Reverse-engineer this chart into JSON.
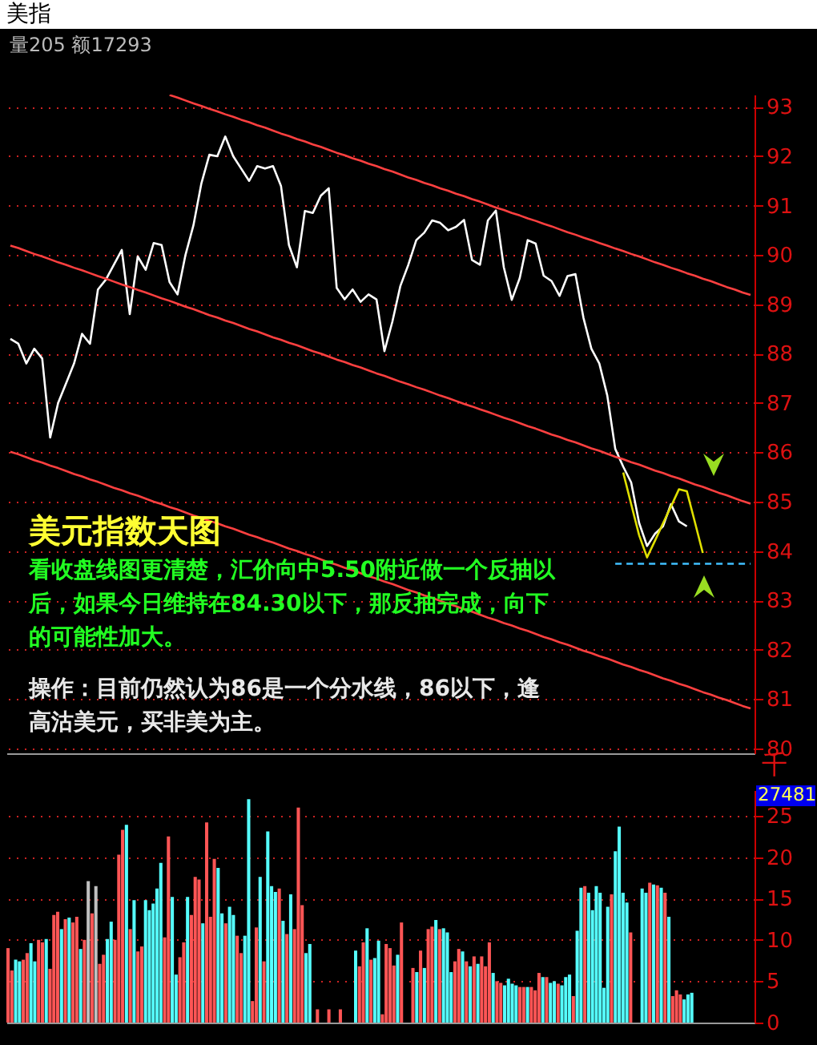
{
  "chart_data": [
    {
      "type": "line",
      "title": "美指",
      "subtitle": "量205 额17293",
      "ylim": [
        79.9,
        93.25
      ],
      "yticks": [
        80,
        81,
        82,
        83,
        84,
        85,
        86,
        87,
        88,
        89,
        90,
        91,
        92,
        93
      ],
      "grid": "y",
      "tick_labels": "y",
      "annotations": [
        "美元指数天图",
        "看收盘线图更清楚，汇价向中5.50附近做一个反抽以后，如果今日维持在84.30以下，那反抽完成，向下的可能性加大。",
        "操作：目前仍然认为86是一个分水线，86以下，逢高沽美元，买非美为主。"
      ],
      "categories": [
        null,
        null,
        null,
        null,
        null,
        null,
        null,
        null,
        null,
        null,
        null,
        null,
        null,
        null,
        null,
        null,
        null,
        null,
        null,
        null,
        null,
        null,
        null,
        null,
        null,
        null,
        null,
        null,
        null,
        null,
        null,
        null,
        null,
        null,
        null,
        null,
        null,
        null,
        null,
        null,
        null,
        null,
        null,
        null,
        null,
        null,
        null,
        null,
        null,
        null,
        null,
        null,
        null,
        null,
        null,
        null,
        null,
        null,
        null,
        null,
        null,
        null,
        null,
        null,
        null,
        null,
        null,
        null,
        null,
        null,
        null,
        null,
        null,
        null,
        null,
        null,
        null,
        null,
        null,
        null,
        null,
        null,
        null,
        null,
        null,
        null,
        null,
        null,
        null,
        null,
        null,
        null,
        null,
        null
      ],
      "series": [
        {
          "color": "#ffffff",
          "values": [
            88.3,
            88.2,
            87.8,
            88.1,
            87.9,
            86.3,
            87.0,
            87.4,
            87.8,
            88.4,
            88.2,
            89.3,
            89.5,
            89.8,
            90.1,
            88.8,
            89.97,
            89.7,
            90.24,
            90.2,
            89.45,
            89.2,
            90.0,
            90.6,
            91.45,
            92.03,
            92.0,
            92.4,
            92.0,
            91.75,
            91.5,
            91.8,
            91.75,
            91.8,
            91.4,
            90.2,
            89.75,
            90.89,
            90.85,
            91.2,
            91.35,
            89.33,
            89.1,
            89.3,
            89.05,
            89.2,
            89.1,
            88.05,
            88.65,
            89.37,
            89.8,
            90.3,
            90.45,
            90.7,
            90.65,
            90.5,
            90.57,
            90.71,
            89.9,
            89.8,
            90.7,
            90.9,
            89.75,
            89.09,
            89.53,
            90.3,
            90.23,
            89.58,
            89.47,
            89.17,
            89.57,
            89.61,
            88.73,
            88.1,
            87.8,
            87.15,
            86.07,
            85.71,
            85.39,
            84.57,
            84.1,
            84.35,
            84.5,
            84.95,
            84.6,
            84.5,
            null,
            null,
            null,
            null,
            null,
            null,
            null,
            null
          ]
        },
        {
          "color": "#ff4040",
          "values": [
            null,
            null,
            null,
            null,
            null,
            null,
            null,
            null,
            null,
            null,
            null,
            null,
            null,
            null,
            null,
            null,
            null,
            null,
            null,
            null,
            93.24,
            93.19,
            93.13,
            93.07,
            93.02,
            92.96,
            92.91,
            92.85,
            92.8,
            92.74,
            92.69,
            92.63,
            92.58,
            92.52,
            92.46,
            92.41,
            92.35,
            92.3,
            92.24,
            92.19,
            92.13,
            92.07,
            92.02,
            91.96,
            91.91,
            91.85,
            91.8,
            91.74,
            91.69,
            91.63,
            91.57,
            91.52,
            91.46,
            91.41,
            91.35,
            91.3,
            91.24,
            91.19,
            91.13,
            91.08,
            91.02,
            90.96,
            90.91,
            90.85,
            90.8,
            90.74,
            90.69,
            90.63,
            90.58,
            90.52,
            90.46,
            90.41,
            90.35,
            90.3,
            90.24,
            90.19,
            90.13,
            90.08,
            90.02,
            89.97,
            89.91,
            89.85,
            89.8,
            89.74,
            89.69,
            89.63,
            89.58,
            89.52,
            89.47,
            89.41,
            89.35,
            89.3,
            89.24,
            89.19
          ]
        },
        {
          "color": "#ff4040",
          "values": [
            90.19,
            90.14,
            90.08,
            90.02,
            89.97,
            89.91,
            89.85,
            89.8,
            89.74,
            89.69,
            89.63,
            89.57,
            89.52,
            89.46,
            89.4,
            89.35,
            89.29,
            89.24,
            89.18,
            89.12,
            89.07,
            89.01,
            88.95,
            88.9,
            88.84,
            88.78,
            88.73,
            88.67,
            88.62,
            88.56,
            88.5,
            88.45,
            88.39,
            88.33,
            88.28,
            88.22,
            88.17,
            88.11,
            88.05,
            88.0,
            87.94,
            87.88,
            87.83,
            87.77,
            87.72,
            87.66,
            87.6,
            87.55,
            87.49,
            87.43,
            87.38,
            87.32,
            87.27,
            87.21,
            87.15,
            87.1,
            87.04,
            86.98,
            86.93,
            86.87,
            86.82,
            86.76,
            86.7,
            86.65,
            86.59,
            86.53,
            86.48,
            86.42,
            86.36,
            86.31,
            86.25,
            86.2,
            86.14,
            86.08,
            86.03,
            85.97,
            85.91,
            85.86,
            85.8,
            85.75,
            85.69,
            85.63,
            85.58,
            85.52,
            85.47,
            85.41,
            85.35,
            85.3,
            85.24,
            85.18,
            85.13,
            85.07,
            85.01,
            84.96
          ]
        },
        {
          "color": "#ff4040",
          "values": [
            86.01,
            85.96,
            85.9,
            85.84,
            85.79,
            85.73,
            85.68,
            85.62,
            85.56,
            85.51,
            85.45,
            85.4,
            85.34,
            85.28,
            85.23,
            85.17,
            85.12,
            85.06,
            85.0,
            84.95,
            84.89,
            84.84,
            84.78,
            84.72,
            84.67,
            84.61,
            84.56,
            84.5,
            84.45,
            84.39,
            84.33,
            84.28,
            84.22,
            84.17,
            84.11,
            84.05,
            84.0,
            83.94,
            83.89,
            83.83,
            83.77,
            83.72,
            83.66,
            83.61,
            83.55,
            83.49,
            83.44,
            83.38,
            83.33,
            83.27,
            83.21,
            83.16,
            83.1,
            83.05,
            82.99,
            82.93,
            82.88,
            82.82,
            82.77,
            82.71,
            82.65,
            82.6,
            82.54,
            82.49,
            82.43,
            82.38,
            82.32,
            82.26,
            82.21,
            82.15,
            82.1,
            82.04,
            81.98,
            81.93,
            81.87,
            81.82,
            81.76,
            81.7,
            81.65,
            81.59,
            81.54,
            81.48,
            81.42,
            81.37,
            81.31,
            81.26,
            81.2,
            81.14,
            81.09,
            81.03,
            80.98,
            80.92,
            80.86,
            80.81
          ]
        },
        {
          "color": "#e0e000",
          "values": [
            null,
            null,
            null,
            null,
            null,
            null,
            null,
            null,
            null,
            null,
            null,
            null,
            null,
            null,
            null,
            null,
            null,
            null,
            null,
            null,
            null,
            null,
            null,
            null,
            null,
            null,
            null,
            null,
            null,
            null,
            null,
            null,
            null,
            null,
            null,
            null,
            null,
            null,
            null,
            null,
            null,
            null,
            null,
            null,
            null,
            null,
            null,
            null,
            null,
            null,
            null,
            null,
            null,
            null,
            null,
            null,
            null,
            null,
            null,
            null,
            null,
            null,
            null,
            null,
            null,
            null,
            null,
            null,
            null,
            null,
            null,
            null,
            null,
            null,
            null,
            null,
            null,
            85.59,
            84.95,
            84.32,
            83.87,
            84.21,
            84.56,
            84.9,
            85.25,
            85.21,
            84.59,
            83.96,
            null,
            null,
            null,
            null,
            null,
            null
          ]
        },
        {
          "color": "#40c0ff",
          "line_style": "dashed",
          "values": [
            null,
            null,
            null,
            null,
            null,
            null,
            null,
            null,
            null,
            null,
            null,
            null,
            null,
            null,
            null,
            null,
            null,
            null,
            null,
            null,
            null,
            null,
            null,
            null,
            null,
            null,
            null,
            null,
            null,
            null,
            null,
            null,
            null,
            null,
            null,
            null,
            null,
            null,
            null,
            null,
            null,
            null,
            null,
            null,
            null,
            null,
            null,
            null,
            null,
            null,
            null,
            null,
            null,
            null,
            null,
            null,
            null,
            null,
            null,
            null,
            null,
            null,
            null,
            null,
            null,
            null,
            null,
            null,
            null,
            null,
            null,
            null,
            null,
            null,
            null,
            null,
            83.74,
            83.74,
            83.74,
            83.74,
            83.74,
            83.74,
            83.74,
            83.74,
            83.74,
            83.74,
            83.74,
            83.74,
            83.74,
            83.74,
            83.74,
            83.74,
            83.74,
            83.74
          ]
        }
      ]
    },
    {
      "type": "bar",
      "ylabel": "千",
      "ylim": [
        0,
        28.1
      ],
      "yticks": [
        0,
        5,
        10,
        15,
        20,
        25
      ],
      "annotations": [
        "27481"
      ],
      "grid": "y",
      "tick_labels": "y",
      "categories": [
        null,
        null,
        null,
        null,
        null,
        null,
        null,
        null,
        null,
        null,
        null,
        null,
        null,
        null,
        null,
        null,
        null,
        null,
        null,
        null,
        null,
        null,
        null,
        null,
        null,
        null,
        null,
        null,
        null,
        null,
        null,
        null,
        null,
        null,
        null,
        null,
        null,
        null,
        null,
        null,
        null,
        null,
        null,
        null,
        null,
        null,
        null,
        null,
        null,
        null,
        null,
        null,
        null,
        null,
        null,
        null,
        null,
        null,
        null,
        null,
        null,
        null,
        null,
        null,
        null,
        null,
        null,
        null,
        null,
        null,
        null,
        null,
        null,
        null,
        null,
        null,
        null,
        null,
        null,
        null,
        null,
        null,
        null,
        null,
        null,
        null,
        null,
        null,
        null,
        null,
        null,
        null,
        null,
        null,
        null,
        null,
        null,
        null,
        null,
        null,
        null,
        null,
        null,
        null,
        null,
        null,
        null,
        null,
        null,
        null,
        null,
        null,
        null,
        null,
        null,
        null,
        null,
        null,
        null,
        null,
        null,
        null,
        null,
        null,
        null,
        null,
        null,
        null,
        null,
        null,
        null,
        null,
        null,
        null,
        null,
        null,
        null,
        null,
        null,
        null,
        null,
        null,
        null,
        null,
        null,
        null,
        null,
        null,
        null,
        null,
        null,
        null,
        null,
        null,
        null,
        null,
        null,
        null,
        null,
        null,
        null,
        null,
        null,
        null,
        null,
        null,
        null,
        null,
        null,
        null,
        null,
        null,
        null,
        null,
        null,
        null,
        null,
        null,
        null,
        null,
        null,
        null,
        null,
        null,
        null,
        null,
        null,
        null,
        null,
        null,
        null,
        null,
        null,
        null,
        null,
        null
      ],
      "values": [
        9.0,
        6.3,
        7.6,
        7.4,
        7.6,
        8.4,
        9.6,
        7.4,
        10.0,
        9.7,
        10.1,
        6.5,
        13.0,
        13.4,
        11.3,
        12.5,
        12.7,
        12.1,
        12.8,
        8.9,
        10.0,
        17.1,
        13.2,
        16.5,
        7.1,
        8.2,
        10.1,
        12.2,
        10.0,
        20.3,
        23.3,
        23.9,
        11.3,
        14.8,
        8.6,
        9.2,
        14.8,
        13.6,
        14.4,
        16.2,
        19.3,
        10.3,
        22.5,
        15.2,
        5.8,
        7.9,
        9.7,
        15.2,
        13.0,
        17.6,
        17.3,
        12.0,
        24.2,
        12.8,
        19.8,
        18.7,
        13.2,
        12.0,
        14.0,
        13.0,
        10.5,
        8.4,
        10.5,
        27.0,
        2.6,
        11.5,
        17.6,
        7.4,
        23.1,
        16.5,
        15.8,
        16.2,
        12.3,
        10.7,
        15.5,
        11.3,
        26.0,
        14.2,
        8.4,
        9.5,
        null,
        1.6,
        null,
        null,
        1.6,
        null,
        null,
        1.6,
        null,
        null,
        null,
        8.7,
        6.8,
        9.7,
        11.4,
        7.6,
        7.8,
        9.9,
        1.0,
        9.5,
        9.0,
        6.9,
        8.2,
        12.1,
        null,
        null,
        6.6,
        6.1,
        8.7,
        6.6,
        11.3,
        11.6,
        12.4,
        11.3,
        11.4,
        10.9,
        6.1,
        7.4,
        8.9,
        8.6,
        7.4,
        6.8,
        8.0,
        7.1,
        8.0,
        6.8,
        9.7,
        6.0,
        5.0,
        4.8,
        4.5,
        5.3,
        4.7,
        4.5,
        4.3,
        4.3,
        4.3,
        4.3,
        3.9,
        6.0,
        5.5,
        5.5,
        4.8,
        5.0,
        4.7,
        4.5,
        5.5,
        5.8,
        3.2,
        11.1,
        16.3,
        16.5,
        15.7,
        13.6,
        16.5,
        15.7,
        4.2,
        14.0,
        15.5,
        20.7,
        23.7,
        15.7,
        14.5,
        10.9,
        null,
        null,
        16.2,
        15.7,
        16.9,
        16.7,
        16.6,
        16.3,
        15.7,
        12.8,
        3.2,
        3.9,
        3.4,
        2.8,
        3.4,
        3.6,
        null,
        null,
        null,
        null,
        null,
        null,
        null,
        null,
        null,
        null,
        null,
        null,
        null,
        null,
        null,
        null
      ],
      "colors": [
        "#ff5555",
        "#ff5555",
        "#55ffff",
        "#55ffff",
        "#ff5555",
        "#ff5555",
        "#55ffff",
        "#55ffff",
        "#ff5555",
        "#ff5555",
        "#55ffff",
        "#ff5555",
        "#ff5555",
        "#ff5555",
        "#55ffff",
        "#ff5555",
        "#55ffff",
        "#ff5555",
        "#ff5555",
        "#55ffff",
        "#ff5555",
        "#c0c0c0",
        "#ff5555",
        "#c0c0c0",
        "#ff5555",
        "#ff5555",
        "#55ffff",
        "#55ffff",
        "#ff5555",
        "#ff5555",
        "#ff5555",
        "#55ffff",
        "#ff5555",
        "#55ffff",
        "#ff5555",
        "#ff5555",
        "#55ffff",
        "#55ffff",
        "#55ffff",
        "#55ffff",
        "#55ffff",
        "#ff5555",
        "#ff5555",
        "#55ffff",
        "#55ffff",
        "#ff5555",
        "#ff5555",
        "#55ffff",
        "#ff5555",
        "#ff5555",
        "#ff5555",
        "#55ffff",
        "#ff5555",
        "#ff5555",
        "#ff5555",
        "#55ffff",
        "#55ffff",
        "#ff5555",
        "#55ffff",
        "#55ffff",
        "#ff5555",
        "#ff5555",
        "#55ffff",
        "#55ffff",
        "#ff5555",
        "#ff5555",
        "#55ffff",
        "#ff5555",
        "#55ffff",
        "#55ffff",
        "#55ffff",
        "#ff5555",
        "#55ffff",
        "#ff5555",
        "#55ffff",
        "#ff5555",
        "#ff5555",
        "#ff5555",
        "#55ffff",
        "#55ffff",
        null,
        "#ff5555",
        null,
        null,
        "#ff5555",
        null,
        null,
        "#ff5555",
        null,
        null,
        null,
        "#55ffff",
        "#ff5555",
        "#ff5555",
        "#55ffff",
        "#ff5555",
        "#55ffff",
        "#55ffff",
        "#ff5555",
        "#ff5555",
        "#ff5555",
        "#ff5555",
        "#55ffff",
        "#ff5555",
        null,
        null,
        "#ff5555",
        "#55ffff",
        "#ff5555",
        "#55ffff",
        "#ff5555",
        "#ff5555",
        "#55ffff",
        "#ff5555",
        "#55ffff",
        "#55ffff",
        "#55ffff",
        "#ff5555",
        "#ff5555",
        "#55ffff",
        "#ff5555",
        "#55ffff",
        "#ff5555",
        "#55ffff",
        "#ff5555",
        "#ff5555",
        "#ff5555",
        "#55ffff",
        "#ff5555",
        "#ff5555",
        "#55ffff",
        "#55ffff",
        "#55ffff",
        "#55ffff",
        "#ff5555",
        "#ff5555",
        "#55ffff",
        "#ff5555",
        "#ff5555",
        "#ff5555",
        "#55ffff",
        "#ff5555",
        "#55ffff",
        "#55ffff",
        "#ff5555",
        "#55ffff",
        "#55ffff",
        "#55ffff",
        "#ff5555",
        "#55ffff",
        "#55ffff",
        "#ff5555",
        "#55ffff",
        "#55ffff",
        "#55ffff",
        "#55ffff",
        "#55ffff",
        "#55ffff",
        "#ff5555",
        "#55ffff",
        "#55ffff",
        "#55ffff",
        "#55ffff",
        "#ff5555",
        null,
        null,
        "#55ffff",
        "#55ffff",
        "#ff5555",
        "#55ffff",
        "#ff5555",
        "#55ffff",
        "#ff5555",
        "#55ffff",
        "#ff5555",
        "#ff5555",
        "#ff5555",
        "#55ffff",
        "#55ffff",
        "#55ffff",
        null,
        null,
        null,
        null,
        null,
        null,
        null,
        null,
        null,
        null,
        null,
        null,
        null,
        null,
        null,
        null
      ]
    }
  ]
}
